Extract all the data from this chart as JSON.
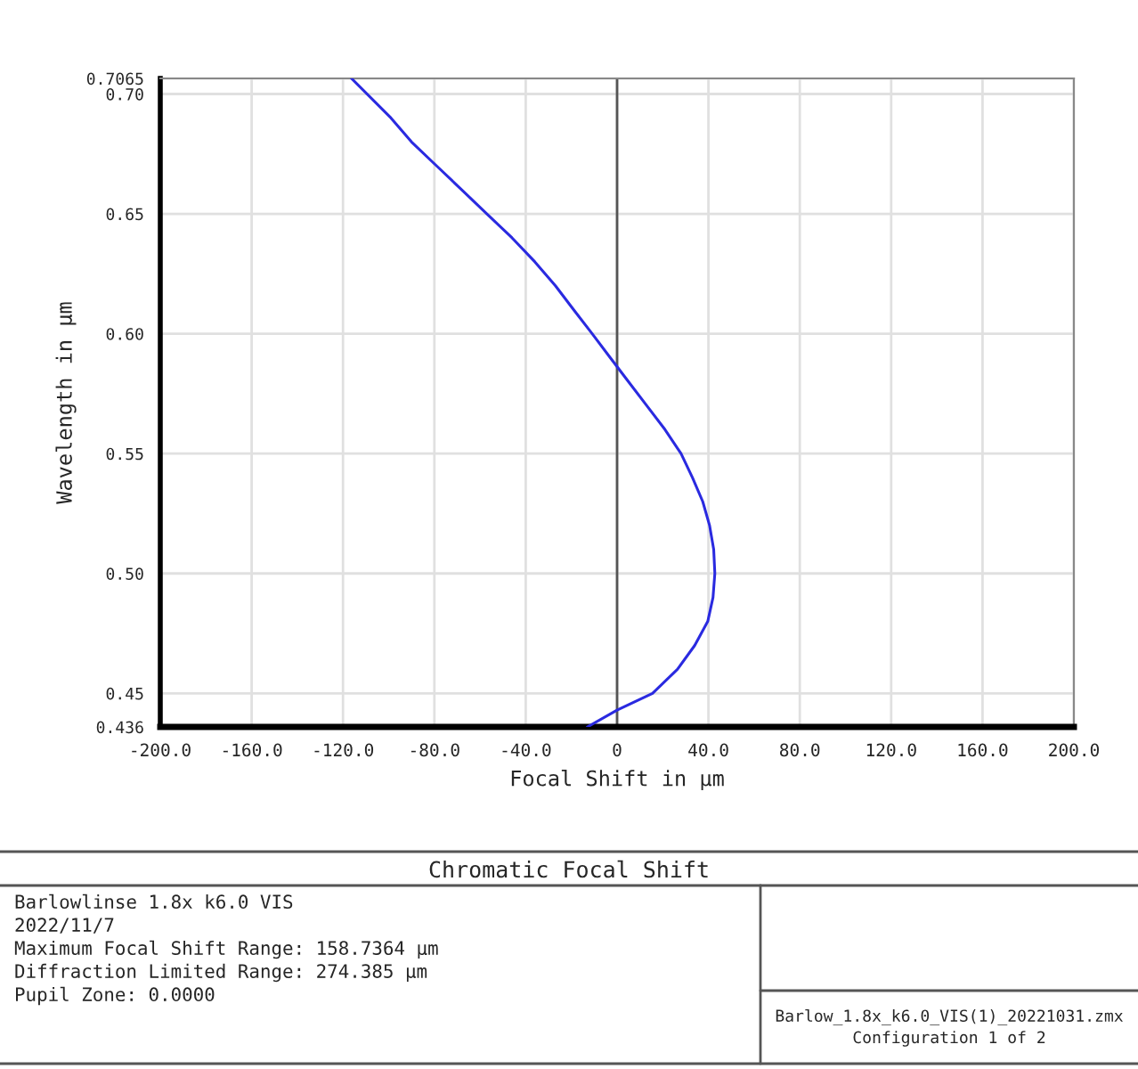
{
  "chart_data": {
    "type": "line",
    "title": "Chromatic Focal Shift",
    "xlabel": "Focal Shift in µm",
    "ylabel": "Wavelength in µm",
    "series": [
      {
        "color": "#2a2ae0",
        "x": [
          -116.3,
          -99,
          -90,
          -79,
          -68,
          -57,
          -46,
          -36,
          -27,
          -19,
          -10.9,
          -3,
          5,
          13,
          21,
          28,
          33,
          37.5,
          40.5,
          42.3,
          42.8,
          42,
          39.7,
          34,
          26.4,
          15.5,
          0,
          -13
        ],
        "values": [
          0.7065,
          0.69,
          0.68,
          0.67,
          0.66,
          0.65,
          0.64,
          0.63,
          0.62,
          0.61,
          0.6,
          0.59,
          0.58,
          0.57,
          0.56,
          0.55,
          0.54,
          0.53,
          0.52,
          0.51,
          0.5,
          0.49,
          0.48,
          0.47,
          0.46,
          0.45,
          0.443,
          0.436
        ]
      }
    ],
    "xlim": [
      -200,
      200
    ],
    "ylim": [
      0.436,
      0.7065
    ],
    "xticks": [
      {
        "value": -200,
        "label": "-200.0"
      },
      {
        "value": -160,
        "label": "-160.0"
      },
      {
        "value": -120,
        "label": "-120.0"
      },
      {
        "value": -80,
        "label": "-80.0"
      },
      {
        "value": -40,
        "label": "-40.0"
      },
      0,
      {
        "value": 40,
        "label": "40.0"
      },
      {
        "value": 80,
        "label": "80.0"
      },
      {
        "value": 120,
        "label": "120.0"
      },
      {
        "value": 160,
        "label": "160.0"
      },
      {
        "value": 200,
        "label": "200.0"
      }
    ],
    "yticks": [
      0.436,
      0.45,
      {
        "value": 0.5,
        "label": "0.50"
      },
      0.55,
      {
        "value": 0.6,
        "label": "0.60"
      },
      0.65,
      {
        "value": 0.7,
        "label": "0.70"
      },
      0.7065
    ],
    "ref_lines": [
      {
        "axis": "x",
        "value": 0,
        "color": "#555555"
      }
    ],
    "grid": true,
    "legend": false,
    "marker": "none",
    "line_style": "solid",
    "annotations": [
      "Barlowlinse 1.8x k6.0 VIS",
      "2022/11/7",
      "Maximum Focal Shift Range: 158.7364 µm",
      "Diffraction Limited Range: 274.385 µm",
      "Pupil Zone: 0.0000",
      "Barlow_1.8x_k6.0_VIS(1)_20221031.zmx",
      "Configuration 1 of 2"
    ]
  }
}
